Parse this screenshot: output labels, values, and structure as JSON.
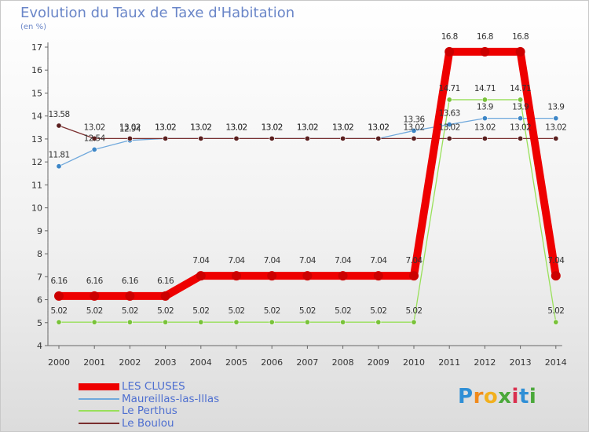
{
  "title": "Evolution du Taux de Taxe d'Habitation",
  "subtitle": "(en %)",
  "logo": "Proxiti",
  "chart_data": {
    "type": "line",
    "x": [
      2000,
      2001,
      2002,
      2003,
      2004,
      2005,
      2006,
      2007,
      2008,
      2009,
      2010,
      2011,
      2012,
      2013,
      2014
    ],
    "ylim": [
      4,
      17
    ],
    "yticks": [
      4,
      5,
      6,
      7,
      8,
      9,
      10,
      11,
      12,
      13,
      14,
      15,
      16,
      17
    ],
    "grid": false,
    "series": [
      {
        "name": "LES CLUSES",
        "color": "#ee0000",
        "values": [
          6.16,
          6.16,
          6.16,
          6.16,
          7.04,
          7.04,
          7.04,
          7.04,
          7.04,
          7.04,
          7.04,
          16.8,
          16.8,
          16.8,
          7.04
        ],
        "labels": [
          "6.16",
          "6.16",
          "6.16",
          "6.16",
          "7.04",
          "7.04",
          "7.04",
          "7.04",
          "7.04",
          "7.04",
          "7.04",
          "16.8",
          "16.8",
          "16.8",
          "7.04"
        ]
      },
      {
        "name": "Maureillas-las-Illas",
        "color": "#6fa8dc",
        "values": [
          11.81,
          12.54,
          12.94,
          13.02,
          13.02,
          13.02,
          13.02,
          13.02,
          13.02,
          13.02,
          13.36,
          13.63,
          13.9,
          13.9,
          13.9
        ],
        "labels": [
          "11.81",
          "12.54",
          "12.94",
          "13.02",
          "13.02",
          "13.02",
          "13.02",
          "13.02",
          "13.02",
          "13.02",
          "13.36",
          "13.63",
          "13.9",
          "13.9",
          "13.9"
        ]
      },
      {
        "name": "Le Perthus",
        "color": "#99e05a",
        "values": [
          5.02,
          5.02,
          5.02,
          5.02,
          5.02,
          5.02,
          5.02,
          5.02,
          5.02,
          5.02,
          5.02,
          14.71,
          14.71,
          14.71,
          5.02
        ],
        "labels": [
          "5.02",
          "5.02",
          "5.02",
          "5.02",
          "5.02",
          "5.02",
          "5.02",
          "5.02",
          "5.02",
          "5.02",
          "5.02",
          "14.71",
          "14.71",
          "14.71",
          "5.02"
        ]
      },
      {
        "name": "Le Boulou",
        "color": "#7a2e2e",
        "values": [
          13.58,
          13.02,
          13.02,
          13.02,
          13.02,
          13.02,
          13.02,
          13.02,
          13.02,
          13.02,
          13.02,
          13.02,
          13.02,
          13.02,
          13.02
        ],
        "labels": [
          "13.58",
          "13.02",
          "13.02",
          "13.02",
          "13.02",
          "13.02",
          "13.02",
          "13.02",
          "13.02",
          "13.02",
          "13.02",
          "13.02",
          "13.02",
          "13.02",
          "13.02"
        ]
      }
    ]
  }
}
